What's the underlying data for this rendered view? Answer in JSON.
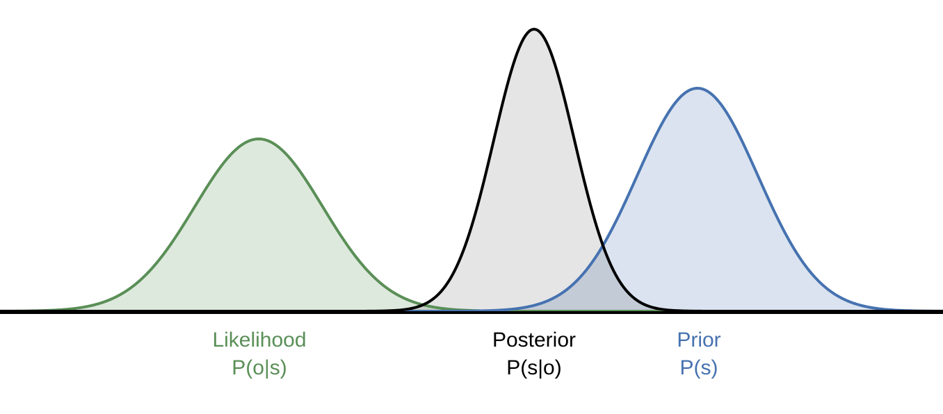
{
  "labels": [
    {
      "name": "Likelihood",
      "formula": "P(o|s)"
    },
    {
      "name": "Posterior",
      "formula": "P(s|o)"
    },
    {
      "name": "Prior",
      "formula": "P(s)"
    }
  ]
}
